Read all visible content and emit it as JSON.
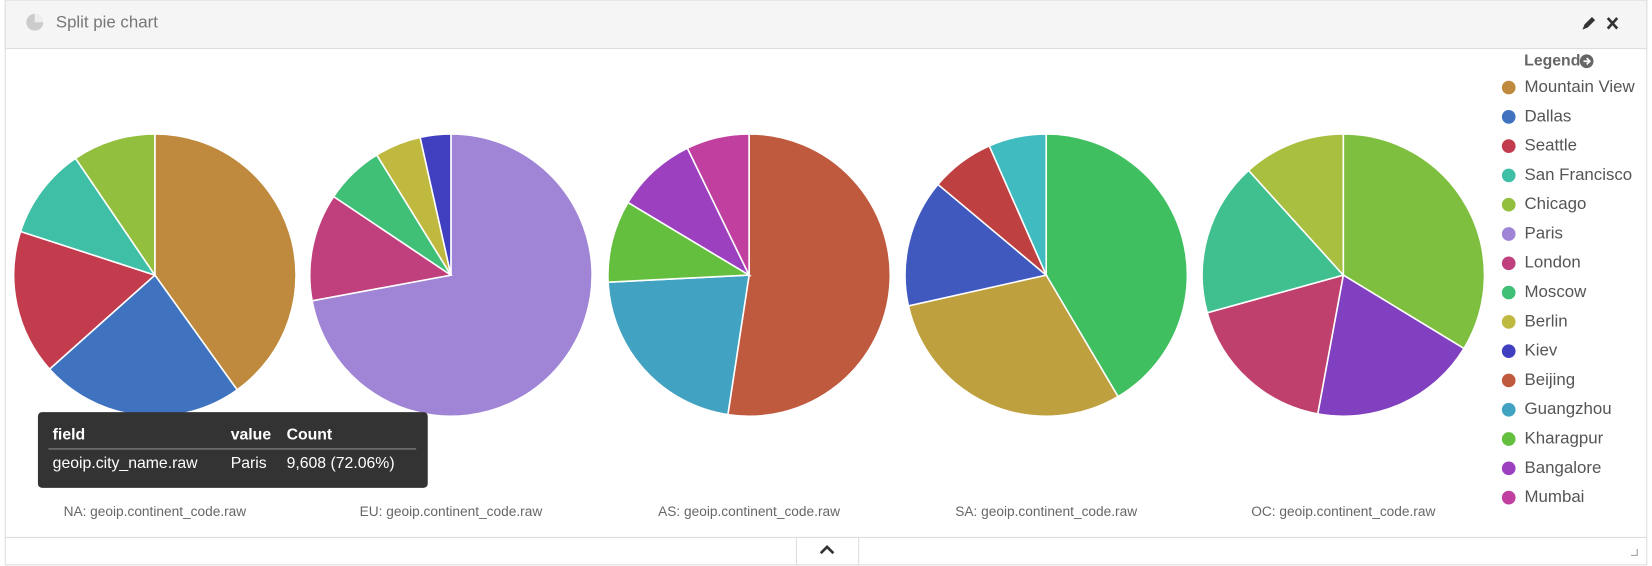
{
  "panel": {
    "title": "Split pie chart"
  },
  "chart_data": [
    {
      "type": "pie",
      "title": "NA: geoip.continent_code.raw",
      "categories": [
        "Mountain View",
        "Dallas",
        "Seattle",
        "San Francisco",
        "Chicago"
      ],
      "values": [
        40.1,
        23.3,
        16.6,
        10.5,
        9.5
      ],
      "colors": [
        "#bf8a3e",
        "#3f73c0",
        "#c23c4e",
        "#3fbfa6",
        "#93bf3e"
      ]
    },
    {
      "type": "pie",
      "title": "EU: geoip.continent_code.raw",
      "categories": [
        "Paris",
        "London",
        "Moscow",
        "Berlin",
        "Kiev"
      ],
      "values": [
        72.06,
        12.3,
        6.8,
        5.3,
        3.5
      ],
      "colors": [
        "#a084d6",
        "#c0407e",
        "#40bf77",
        "#bfb940",
        "#3f3fc0"
      ]
    },
    {
      "type": "pie",
      "title": "AS: geoip.continent_code.raw",
      "categories": [
        "Beijing",
        "Guangzhou",
        "Kharagpur",
        "Bangalore",
        "Mumbai"
      ],
      "values": [
        52.4,
        21.8,
        9.4,
        9.2,
        7.2
      ],
      "colors": [
        "#c05a3f",
        "#41a3c1",
        "#64bf3e",
        "#9c40c0",
        "#c03f9f"
      ]
    },
    {
      "type": "pie",
      "title": "SA: geoip.continent_code.raw",
      "values": [
        41.5,
        30,
        14.6,
        7.3,
        6.6
      ],
      "colors": [
        "#3fbf5f",
        "#bfa03f",
        "#4059bf",
        "#bf4040",
        "#40bcc0"
      ]
    },
    {
      "type": "pie",
      "title": "OC: geoip.continent_code.raw",
      "values": [
        33.7,
        19.2,
        17.8,
        17.6,
        11.7
      ],
      "colors": [
        "#7fbf3f",
        "#8040bf",
        "#bf406d",
        "#40bf8f",
        "#a9bf40"
      ]
    }
  ],
  "legend": {
    "title": "Legend"
  },
  "tooltip": {
    "headers": [
      "field",
      "value",
      "Count"
    ],
    "row": [
      "geoip.city_name.raw",
      "Paris",
      "9,608 (72.06%)"
    ]
  }
}
